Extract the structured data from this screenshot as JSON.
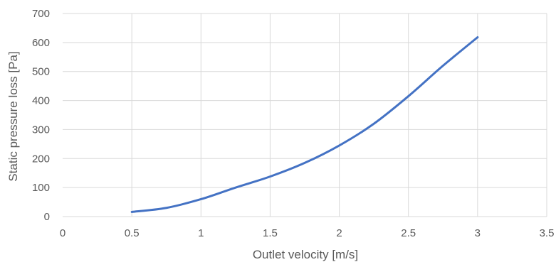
{
  "chart_data": {
    "type": "line",
    "title": "",
    "xlabel": "Outlet velocity [m/s]",
    "ylabel": "Static pressure loss [Pa]",
    "xlim": [
      0,
      3.5
    ],
    "ylim": [
      0,
      700
    ],
    "x_ticks": [
      "0",
      "0.5",
      "1",
      "1.5",
      "2",
      "2.5",
      "3",
      "3.5"
    ],
    "y_ticks": [
      "0",
      "100",
      "200",
      "300",
      "400",
      "500",
      "600",
      "700"
    ],
    "grid": true,
    "series": [
      {
        "color": "#4472c4",
        "x": [
          0.5,
          0.75,
          1.0,
          1.25,
          1.5,
          1.75,
          2.0,
          2.25,
          2.5,
          2.75,
          3.0
        ],
        "y": [
          16,
          30,
          60,
          100,
          138,
          185,
          245,
          320,
          415,
          520,
          618
        ]
      }
    ]
  }
}
